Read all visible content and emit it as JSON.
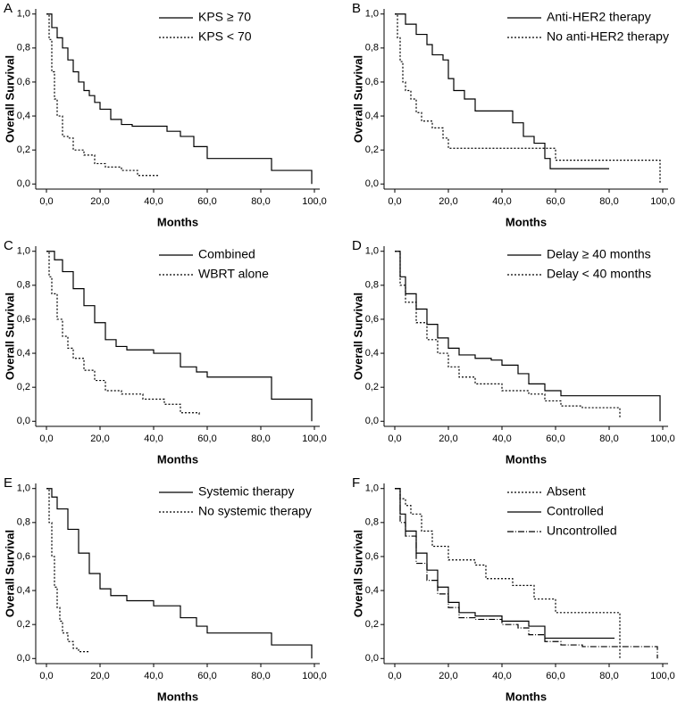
{
  "chart_data": [
    {
      "type": "line",
      "panel": "A",
      "y_label": "Overall Survival",
      "x_label": "Months",
      "legend": "upper right",
      "xlim": [
        -4,
        102
      ],
      "ylim": [
        -0.03,
        1.03
      ],
      "xticks": [
        {
          "value": 0,
          "label": "0,0"
        },
        {
          "value": 20,
          "label": "20,0"
        },
        {
          "value": 40,
          "label": "40,0"
        },
        {
          "value": 60,
          "label": "60,0"
        },
        {
          "value": 80,
          "label": "80,0"
        },
        {
          "value": 100,
          "label": "100,0"
        }
      ],
      "yticks": [
        {
          "value": 0,
          "label": "0,0"
        },
        {
          "value": 0.2,
          "label": "0,2"
        },
        {
          "value": 0.4,
          "label": "0,4"
        },
        {
          "value": 0.6,
          "label": "0,6"
        },
        {
          "value": 0.8,
          "label": "0,8"
        },
        {
          "value": 1,
          "label": "1,0"
        }
      ],
      "series": [
        {
          "name": "KPS ≥ 70",
          "color": "#000000",
          "line_style": "solid",
          "x": [
            0,
            2,
            4,
            6,
            8,
            10,
            12,
            14,
            16,
            18,
            20,
            24,
            28,
            32,
            40,
            45,
            50,
            55,
            60,
            70,
            84,
            98,
            99
          ],
          "values": [
            1,
            0.92,
            0.86,
            0.8,
            0.73,
            0.66,
            0.6,
            0.55,
            0.52,
            0.48,
            0.44,
            0.38,
            0.35,
            0.34,
            0.34,
            0.31,
            0.28,
            0.22,
            0.15,
            0.15,
            0.08,
            0.08,
            0
          ]
        },
        {
          "name": "KPS < 70",
          "color": "#000000",
          "line_style": "dashed",
          "x": [
            0,
            1,
            2,
            3,
            4,
            6,
            8,
            10,
            14,
            18,
            22,
            28,
            34,
            42
          ],
          "values": [
            1,
            0.85,
            0.66,
            0.5,
            0.4,
            0.28,
            0.27,
            0.2,
            0.17,
            0.12,
            0.1,
            0.08,
            0.05,
            0.05
          ]
        }
      ]
    },
    {
      "type": "line",
      "panel": "B",
      "y_label": "Overall Survival",
      "x_label": "Months",
      "legend": "upper right",
      "xlim": [
        -4,
        102
      ],
      "ylim": [
        -0.03,
        1.03
      ],
      "xticks": [
        {
          "value": 0,
          "label": "0,0"
        },
        {
          "value": 20,
          "label": "20,0"
        },
        {
          "value": 40,
          "label": "40,0"
        },
        {
          "value": 60,
          "label": "60,0"
        },
        {
          "value": 80,
          "label": "80,0"
        },
        {
          "value": 100,
          "label": "100,0"
        }
      ],
      "yticks": [
        {
          "value": 0,
          "label": "0,0"
        },
        {
          "value": 0.2,
          "label": "0,2"
        },
        {
          "value": 0.4,
          "label": "0,4"
        },
        {
          "value": 0.6,
          "label": "0,6"
        },
        {
          "value": 0.8,
          "label": "0,8"
        },
        {
          "value": 1,
          "label": "1,0"
        }
      ],
      "series": [
        {
          "name": "Anti-HER2 therapy",
          "color": "#000000",
          "line_style": "solid",
          "x": [
            0,
            4,
            8,
            12,
            14,
            18,
            20,
            22,
            26,
            30,
            36,
            44,
            48,
            52,
            56,
            58,
            80
          ],
          "values": [
            1,
            0.94,
            0.88,
            0.82,
            0.76,
            0.73,
            0.62,
            0.55,
            0.5,
            0.43,
            0.43,
            0.36,
            0.28,
            0.24,
            0.15,
            0.09,
            0.09
          ]
        },
        {
          "name": "No anti-HER2 therapy",
          "color": "#000000",
          "line_style": "dashed",
          "x": [
            0,
            1,
            2,
            3,
            4,
            6,
            8,
            10,
            14,
            18,
            20,
            30,
            50,
            60,
            99
          ],
          "values": [
            1,
            0.86,
            0.72,
            0.6,
            0.55,
            0.5,
            0.42,
            0.37,
            0.33,
            0.27,
            0.21,
            0.21,
            0.21,
            0.14,
            0
          ]
        }
      ]
    },
    {
      "type": "line",
      "panel": "C",
      "y_label": "Overall Survival",
      "x_label": "Months",
      "legend": "upper right",
      "xlim": [
        -4,
        102
      ],
      "ylim": [
        -0.03,
        1.03
      ],
      "xticks": [
        {
          "value": 0,
          "label": "0,0"
        },
        {
          "value": 20,
          "label": "20,0"
        },
        {
          "value": 40,
          "label": "40,0"
        },
        {
          "value": 60,
          "label": "60,0"
        },
        {
          "value": 80,
          "label": "80,0"
        },
        {
          "value": 100,
          "label": "100,0"
        }
      ],
      "yticks": [
        {
          "value": 0,
          "label": "0,0"
        },
        {
          "value": 0.2,
          "label": "0,2"
        },
        {
          "value": 0.4,
          "label": "0,4"
        },
        {
          "value": 0.6,
          "label": "0,6"
        },
        {
          "value": 0.8,
          "label": "0,8"
        },
        {
          "value": 1,
          "label": "1,0"
        }
      ],
      "series": [
        {
          "name": "Combined",
          "color": "#000000",
          "line_style": "solid",
          "x": [
            0,
            3,
            6,
            10,
            14,
            18,
            22,
            26,
            30,
            40,
            44,
            50,
            56,
            60,
            84,
            99
          ],
          "values": [
            1,
            0.95,
            0.88,
            0.78,
            0.68,
            0.58,
            0.48,
            0.44,
            0.42,
            0.4,
            0.4,
            0.32,
            0.29,
            0.26,
            0.13,
            0
          ]
        },
        {
          "name": "WBRT alone",
          "color": "#000000",
          "line_style": "dashed",
          "x": [
            0,
            1,
            2,
            4,
            6,
            8,
            10,
            14,
            18,
            22,
            28,
            36,
            44,
            50,
            57
          ],
          "values": [
            1,
            0.85,
            0.75,
            0.6,
            0.5,
            0.43,
            0.37,
            0.3,
            0.24,
            0.18,
            0.16,
            0.13,
            0.1,
            0.05,
            0.03
          ]
        }
      ]
    },
    {
      "type": "line",
      "panel": "D",
      "y_label": "Overall Survival",
      "x_label": "Months",
      "legend": "upper right",
      "xlim": [
        -4,
        102
      ],
      "ylim": [
        -0.03,
        1.03
      ],
      "xticks": [
        {
          "value": 0,
          "label": "0,0"
        },
        {
          "value": 20,
          "label": "20,0"
        },
        {
          "value": 40,
          "label": "40,0"
        },
        {
          "value": 60,
          "label": "60,0"
        },
        {
          "value": 80,
          "label": "80,0"
        },
        {
          "value": 100,
          "label": "100,0"
        }
      ],
      "yticks": [
        {
          "value": 0,
          "label": "0,0"
        },
        {
          "value": 0.2,
          "label": "0,2"
        },
        {
          "value": 0.4,
          "label": "0,4"
        },
        {
          "value": 0.6,
          "label": "0,6"
        },
        {
          "value": 0.8,
          "label": "0,8"
        },
        {
          "value": 1,
          "label": "1,0"
        }
      ],
      "series": [
        {
          "name": "Delay ≥ 40 months",
          "color": "#000000",
          "line_style": "solid",
          "x": [
            0,
            2,
            4,
            8,
            12,
            16,
            20,
            24,
            30,
            36,
            40,
            46,
            50,
            56,
            62,
            80,
            99
          ],
          "values": [
            1,
            0.85,
            0.75,
            0.66,
            0.57,
            0.49,
            0.43,
            0.39,
            0.37,
            0.36,
            0.33,
            0.28,
            0.22,
            0.18,
            0.15,
            0.15,
            0
          ]
        },
        {
          "name": "Delay < 40 months",
          "color": "#000000",
          "line_style": "dashed",
          "x": [
            0,
            2,
            4,
            8,
            12,
            16,
            20,
            24,
            30,
            40,
            50,
            56,
            62,
            70,
            80,
            84
          ],
          "values": [
            1,
            0.8,
            0.7,
            0.58,
            0.48,
            0.4,
            0.32,
            0.26,
            0.22,
            0.18,
            0.16,
            0.12,
            0.09,
            0.08,
            0.08,
            0.02
          ]
        }
      ]
    },
    {
      "type": "line",
      "panel": "E",
      "y_label": "Overall Survival",
      "x_label": "Months",
      "legend": "upper right",
      "xlim": [
        -4,
        102
      ],
      "ylim": [
        -0.03,
        1.03
      ],
      "xticks": [
        {
          "value": 0,
          "label": "0,0"
        },
        {
          "value": 20,
          "label": "20,0"
        },
        {
          "value": 40,
          "label": "40,0"
        },
        {
          "value": 60,
          "label": "60,0"
        },
        {
          "value": 80,
          "label": "80,0"
        },
        {
          "value": 100,
          "label": "100,0"
        }
      ],
      "yticks": [
        {
          "value": 0,
          "label": "0,0"
        },
        {
          "value": 0.2,
          "label": "0,2"
        },
        {
          "value": 0.4,
          "label": "0,4"
        },
        {
          "value": 0.6,
          "label": "0,6"
        },
        {
          "value": 0.8,
          "label": "0,8"
        },
        {
          "value": 1,
          "label": "1,0"
        }
      ],
      "series": [
        {
          "name": "Systemic therapy",
          "color": "#000000",
          "line_style": "solid",
          "x": [
            0,
            2,
            4,
            8,
            12,
            16,
            20,
            24,
            30,
            40,
            50,
            56,
            60,
            84,
            99
          ],
          "values": [
            1,
            0.95,
            0.88,
            0.76,
            0.62,
            0.5,
            0.41,
            0.37,
            0.34,
            0.31,
            0.24,
            0.19,
            0.15,
            0.08,
            0
          ]
        },
        {
          "name": "No systemic therapy",
          "color": "#000000",
          "line_style": "dashed",
          "x": [
            0,
            1,
            2,
            3,
            4,
            5,
            6,
            8,
            10,
            12,
            16
          ],
          "values": [
            1,
            0.8,
            0.6,
            0.42,
            0.3,
            0.22,
            0.15,
            0.1,
            0.06,
            0.04,
            0.04
          ]
        }
      ]
    },
    {
      "type": "line",
      "panel": "F",
      "y_label": "Overall Survival",
      "x_label": "Months",
      "legend": "upper right",
      "xlim": [
        -4,
        102
      ],
      "ylim": [
        -0.03,
        1.03
      ],
      "xticks": [
        {
          "value": 0,
          "label": "0,0"
        },
        {
          "value": 20,
          "label": "20,0"
        },
        {
          "value": 40,
          "label": "40,0"
        },
        {
          "value": 60,
          "label": "60,0"
        },
        {
          "value": 80,
          "label": "80,0"
        },
        {
          "value": 100,
          "label": "100,0"
        }
      ],
      "yticks": [
        {
          "value": 0,
          "label": "0,0"
        },
        {
          "value": 0.2,
          "label": "0,2"
        },
        {
          "value": 0.4,
          "label": "0,4"
        },
        {
          "value": 0.6,
          "label": "0,6"
        },
        {
          "value": 0.8,
          "label": "0,8"
        },
        {
          "value": 1,
          "label": "1,0"
        }
      ],
      "series": [
        {
          "name": "Absent",
          "color": "#000000",
          "line_style": "dashed",
          "x": [
            0,
            2,
            4,
            6,
            10,
            14,
            20,
            24,
            30,
            34,
            40,
            44,
            52,
            60,
            66,
            80,
            84
          ],
          "values": [
            1,
            0.94,
            0.9,
            0.85,
            0.75,
            0.66,
            0.58,
            0.58,
            0.55,
            0.47,
            0.47,
            0.43,
            0.35,
            0.27,
            0.27,
            0.27,
            0
          ]
        },
        {
          "name": "Controlled",
          "color": "#000000",
          "line_style": "solid",
          "x": [
            0,
            2,
            4,
            8,
            12,
            16,
            20,
            24,
            30,
            40,
            50,
            56,
            82
          ],
          "values": [
            1,
            0.85,
            0.75,
            0.62,
            0.52,
            0.42,
            0.33,
            0.27,
            0.25,
            0.22,
            0.19,
            0.12,
            0.12
          ]
        },
        {
          "name": "Uncontrolled",
          "color": "#000000",
          "line_style": "dashdot",
          "x": [
            0,
            2,
            4,
            8,
            12,
            16,
            20,
            24,
            30,
            40,
            46,
            50,
            56,
            62,
            70,
            84,
            98
          ],
          "values": [
            1,
            0.8,
            0.72,
            0.56,
            0.46,
            0.38,
            0.3,
            0.24,
            0.23,
            0.2,
            0.18,
            0.14,
            0.1,
            0.08,
            0.07,
            0.07,
            0
          ]
        }
      ]
    }
  ]
}
